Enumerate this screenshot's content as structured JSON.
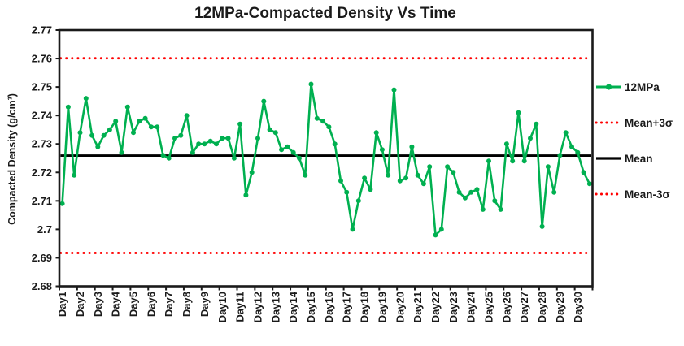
{
  "chart_data": {
    "type": "line",
    "title": "12MPa-Compacted Density Vs Time",
    "xlabel": "",
    "ylabel": "Compacted Density (g/cm³)",
    "ylim": [
      2.68,
      2.77
    ],
    "ytick_labels": [
      "2.68",
      "2.69",
      "2.7",
      "2.71",
      "2.72",
      "2.73",
      "2.74",
      "2.75",
      "2.76",
      "2.77"
    ],
    "categories": [
      "Day1",
      "Day2",
      "Day3",
      "Day4",
      "Day5",
      "Day6",
      "Day7",
      "Day8",
      "Day9",
      "Day10",
      "Day11",
      "Day12",
      "Day13",
      "Day14",
      "Day15",
      "Day16",
      "Day17",
      "Day18",
      "Day19",
      "Day20",
      "Day21",
      "Day22",
      "Day23",
      "Day24",
      "Day25",
      "Day26",
      "Day27",
      "Day28",
      "Day29",
      "Day30"
    ],
    "points_per_category": 3,
    "grid": false,
    "legend_position": "right",
    "series": [
      {
        "name": "12MPa",
        "kind": "line-markers",
        "color": "#00B050",
        "values": [
          2.709,
          2.743,
          2.719,
          2.734,
          2.746,
          2.733,
          2.729,
          2.733,
          2.735,
          2.738,
          2.727,
          2.743,
          2.734,
          2.738,
          2.739,
          2.736,
          2.736,
          2.726,
          2.725,
          2.732,
          2.733,
          2.74,
          2.727,
          2.73,
          2.73,
          2.731,
          2.73,
          2.732,
          2.732,
          2.725,
          2.737,
          2.712,
          2.72,
          2.732,
          2.745,
          2.735,
          2.734,
          2.728,
          2.729,
          2.727,
          2.725,
          2.719,
          2.751,
          2.739,
          2.738,
          2.736,
          2.73,
          2.717,
          2.713,
          2.7,
          2.71,
          2.718,
          2.714,
          2.734,
          2.728,
          2.719,
          2.749,
          2.717,
          2.718,
          2.729,
          2.719,
          2.716,
          2.722,
          2.698,
          2.7,
          2.722,
          2.72,
          2.713,
          2.711,
          2.713,
          2.714,
          2.707,
          2.724,
          2.71,
          2.707,
          2.73,
          2.724,
          2.741,
          2.724,
          2.732,
          2.737,
          2.701,
          2.722,
          2.713,
          2.726,
          2.734,
          2.729,
          2.727,
          2.72,
          2.716
        ]
      },
      {
        "name": "Mean+3σ",
        "kind": "hline",
        "style": "dotted",
        "color": "#FF0000",
        "value": 2.7601
      },
      {
        "name": "Mean",
        "kind": "hline",
        "style": "solid",
        "color": "#000000",
        "value": 2.7259
      },
      {
        "name": "Mean-3σ",
        "kind": "hline",
        "style": "dotted",
        "color": "#FF0000",
        "value": 2.6917
      }
    ]
  }
}
